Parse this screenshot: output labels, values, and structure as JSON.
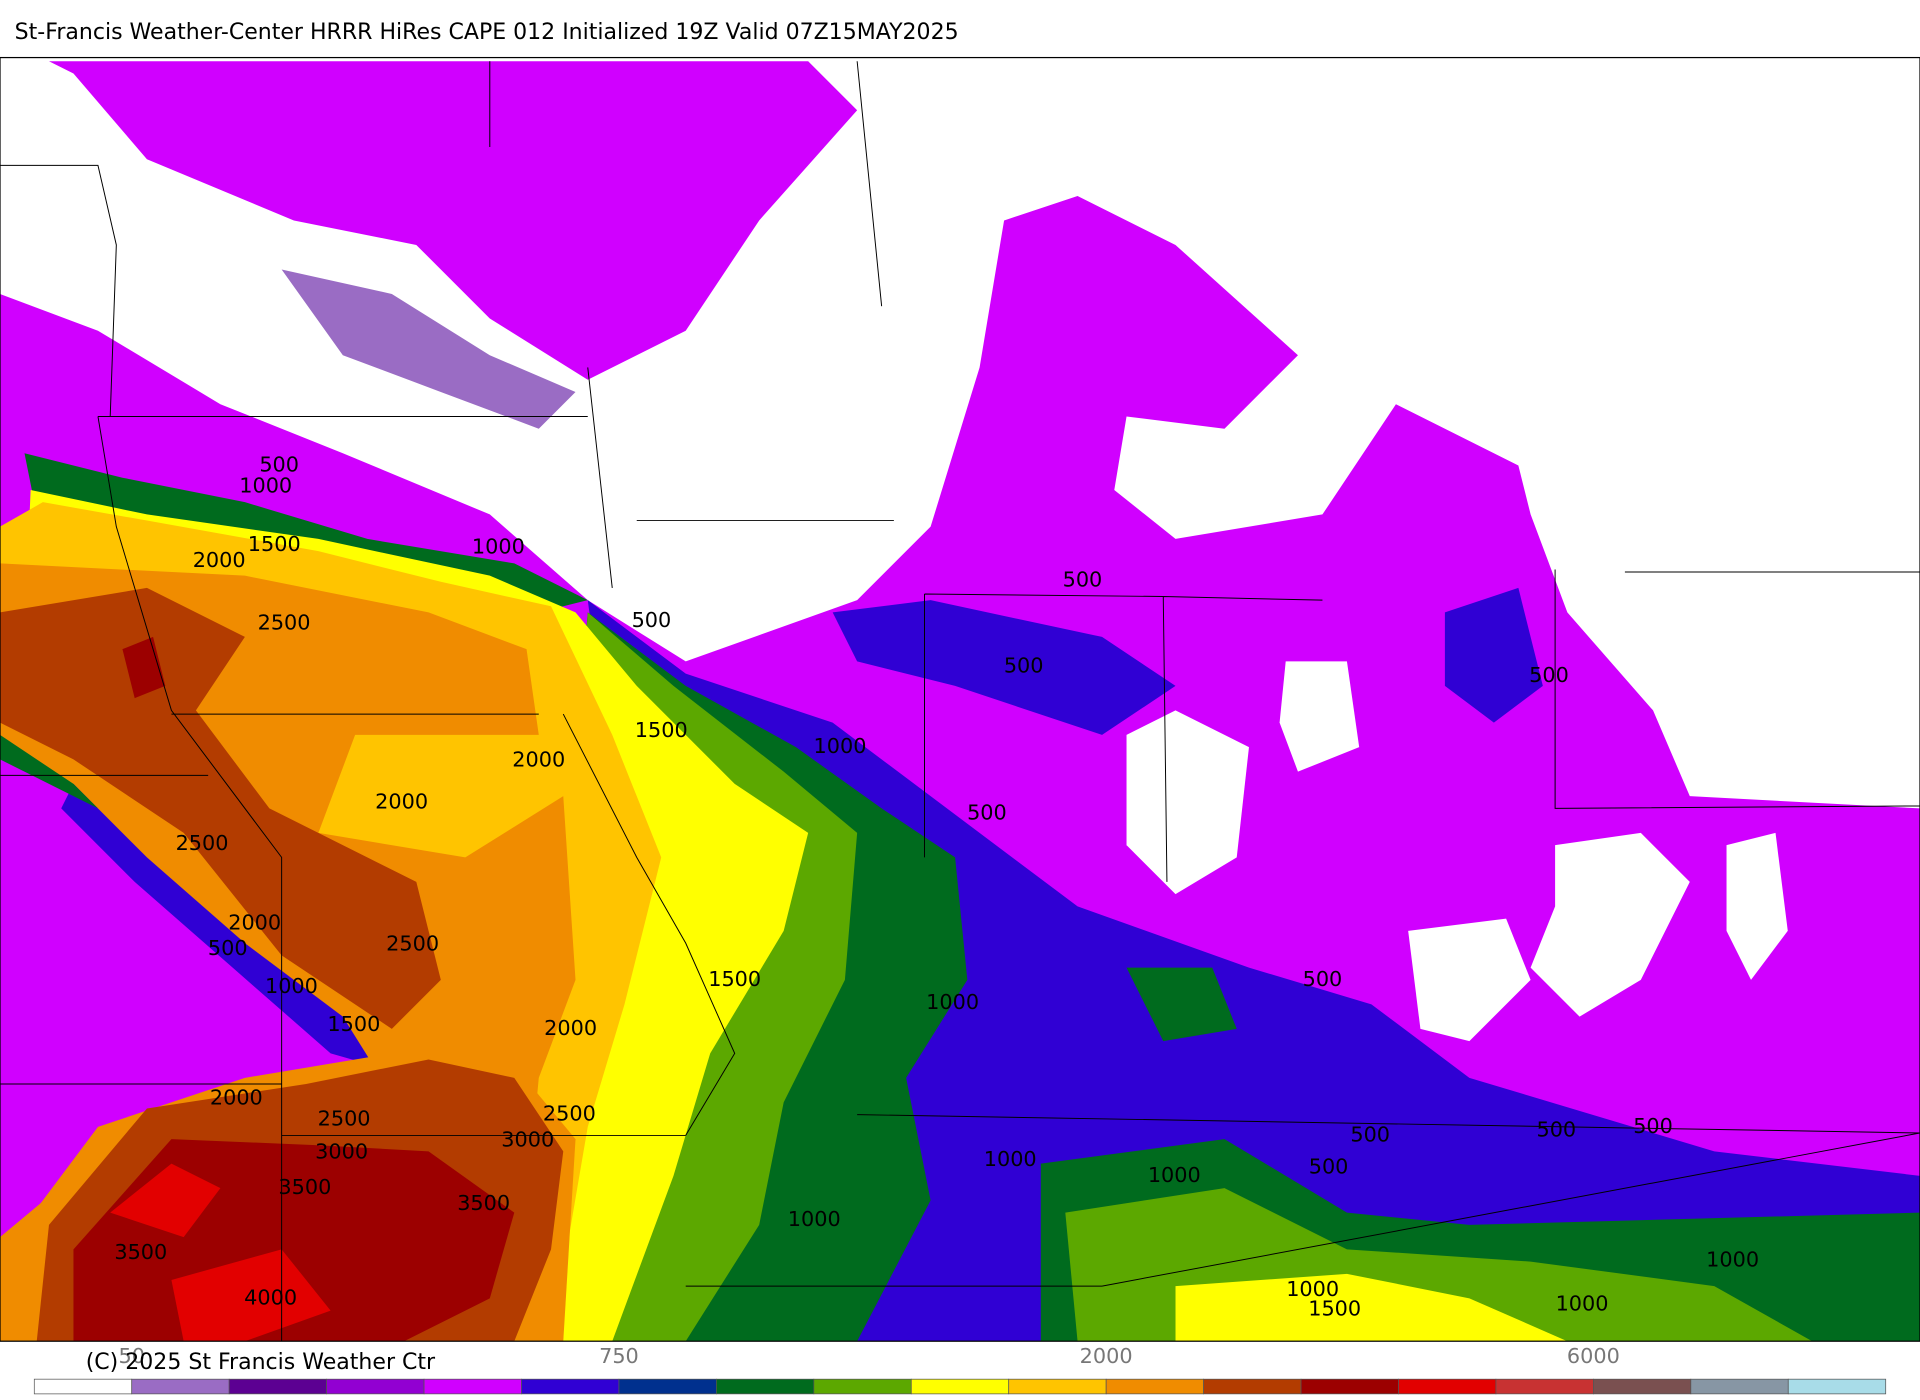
{
  "title": "St-Francis Weather-Center HRRR HiRes CAPE  012 Initialized  19Z Valid 07Z15MAY2025",
  "copyright": "(C) 2025 St Francis Weather Ctr",
  "colorbar": {
    "colors": [
      "#ffffff",
      "#9a6cc4",
      "#5c0092",
      "#9200d2",
      "#d000ff",
      "#3000d4",
      "#00308e",
      "#006b1e",
      "#5ca800",
      "#ffff00",
      "#ffc400",
      "#f08c00",
      "#b33c00",
      "#9c0000",
      "#e20000",
      "#c83232",
      "#7a5050",
      "#8796a4",
      "#a8dce8"
    ],
    "labels": [
      "50",
      "750",
      "2000",
      "6000"
    ]
  },
  "contour_labels": [
    500,
    1000,
    1000,
    1500,
    2000,
    2500,
    500,
    1500,
    1000,
    2000,
    2000,
    500,
    500,
    500,
    500,
    2500,
    2000,
    500,
    2500,
    1500,
    1000,
    1500,
    2000,
    1000,
    500,
    2000,
    2500,
    2500,
    3000,
    3000,
    3500,
    3500,
    1000,
    1000,
    500,
    500,
    500,
    500,
    1000,
    3500,
    1000,
    4000,
    1000,
    1500,
    1000
  ]
}
